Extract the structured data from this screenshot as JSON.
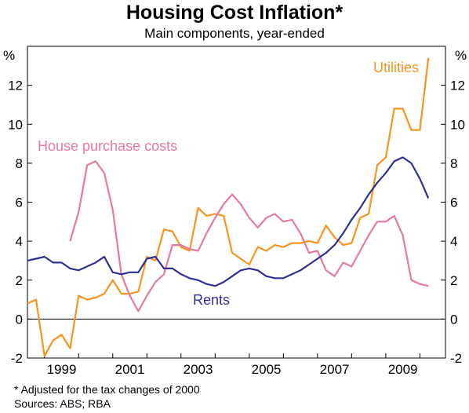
{
  "chart_data": {
    "type": "line",
    "title": "Housing Cost Inflation*",
    "subtitle": "Main components, year-ended",
    "y_unit_left": "%",
    "y_unit_right": "%",
    "ylim": [
      -2,
      14
    ],
    "yticks": [
      -2,
      0,
      2,
      4,
      6,
      8,
      10,
      12
    ],
    "xlim": [
      1997.5,
      2009.75
    ],
    "xticks": [
      "1999",
      "2001",
      "2003",
      "2005",
      "2007",
      "2009"
    ],
    "xtick_values": [
      1999,
      2001,
      2003,
      2005,
      2007,
      2009
    ],
    "grid": false,
    "series": [
      {
        "name": "Utilities",
        "color": "#f7941d",
        "x": [
          1997.5,
          1997.75,
          1998,
          1998.25,
          1998.5,
          1998.75,
          1999,
          1999.25,
          1999.5,
          1999.75,
          2000,
          2000.25,
          2000.5,
          2000.75,
          2001,
          2001.25,
          2001.5,
          2001.75,
          2002,
          2002.25,
          2002.5,
          2002.75,
          2003,
          2003.25,
          2003.5,
          2003.75,
          2004,
          2004.25,
          2004.5,
          2004.75,
          2005,
          2005.25,
          2005.5,
          2005.75,
          2006,
          2006.25,
          2006.5,
          2006.75,
          2007,
          2007.25,
          2007.5,
          2007.75,
          2008,
          2008.25,
          2008.5,
          2008.75,
          2009,
          2009.25
        ],
        "values": [
          0.8,
          1.0,
          -1.9,
          -1.1,
          -0.8,
          -1.5,
          1.2,
          1.0,
          1.1,
          1.3,
          2.0,
          1.3,
          1.3,
          1.4,
          3.2,
          3.0,
          4.6,
          4.5,
          3.7,
          3.5,
          5.7,
          5.3,
          5.4,
          5.3,
          3.4,
          3.1,
          2.8,
          3.7,
          3.5,
          3.8,
          3.7,
          3.9,
          3.9,
          4.0,
          3.9,
          4.8,
          4.2,
          3.8,
          3.9,
          5.2,
          5.4,
          7.9,
          8.3,
          10.8,
          10.8,
          9.7,
          9.7,
          13.4
        ]
      },
      {
        "name": "House purchase costs",
        "color": "#e6799f",
        "x": [
          1998.75,
          1999,
          1999.25,
          1999.5,
          1999.75,
          2000,
          2000.25,
          2000.5,
          2000.75,
          2001,
          2001.25,
          2001.5,
          2001.75,
          2002,
          2002.25,
          2002.5,
          2002.75,
          2003,
          2003.25,
          2003.5,
          2003.75,
          2004,
          2004.25,
          2004.5,
          2004.75,
          2005,
          2005.25,
          2005.5,
          2005.75,
          2006,
          2006.25,
          2006.5,
          2006.75,
          2007,
          2007.25,
          2007.5,
          2007.75,
          2008,
          2008.25,
          2008.5,
          2008.75,
          2009,
          2009.25
        ],
        "values": [
          4.0,
          5.5,
          7.9,
          8.1,
          7.5,
          5.6,
          2.3,
          1.2,
          0.4,
          1.2,
          1.9,
          2.3,
          3.8,
          3.8,
          3.6,
          3.5,
          4.4,
          5.2,
          5.9,
          6.4,
          5.9,
          5.2,
          4.7,
          5.2,
          5.4,
          5.0,
          5.1,
          4.4,
          3.4,
          3.5,
          2.5,
          2.2,
          2.9,
          2.7,
          3.5,
          4.3,
          5.0,
          5.0,
          5.3,
          4.3,
          2.0,
          1.8,
          1.7
        ]
      },
      {
        "name": "Rents",
        "color": "#2e3192",
        "x": [
          1997.5,
          1997.75,
          1998,
          1998.25,
          1998.5,
          1998.75,
          1999,
          1999.25,
          1999.5,
          1999.75,
          2000,
          2000.25,
          2000.5,
          2000.75,
          2001,
          2001.25,
          2001.5,
          2001.75,
          2002,
          2002.25,
          2002.5,
          2002.75,
          2003,
          2003.25,
          2003.5,
          2003.75,
          2004,
          2004.25,
          2004.5,
          2004.75,
          2005,
          2005.25,
          2005.5,
          2005.75,
          2006,
          2006.25,
          2006.5,
          2006.75,
          2007,
          2007.25,
          2007.5,
          2007.75,
          2008,
          2008.25,
          2008.5,
          2008.75,
          2009,
          2009.25
        ],
        "values": [
          3.0,
          3.1,
          3.2,
          2.9,
          2.9,
          2.6,
          2.5,
          2.7,
          2.9,
          3.2,
          2.4,
          2.3,
          2.4,
          2.4,
          3.1,
          3.2,
          2.6,
          2.6,
          2.3,
          2.1,
          2.0,
          1.8,
          1.7,
          1.9,
          2.2,
          2.5,
          2.6,
          2.5,
          2.2,
          2.1,
          2.1,
          2.3,
          2.5,
          2.8,
          3.1,
          3.4,
          3.8,
          4.4,
          5.1,
          5.7,
          6.4,
          7.0,
          7.5,
          8.1,
          8.3,
          8.0,
          7.2,
          6.2
        ]
      }
    ],
    "series_labels": {
      "utilities": "Utilities",
      "house": "House purchase costs",
      "rents": "Rents"
    }
  },
  "footnotes": {
    "note": "*   Adjusted for the tax changes of 2000",
    "sources": "Sources: ABS; RBA"
  }
}
